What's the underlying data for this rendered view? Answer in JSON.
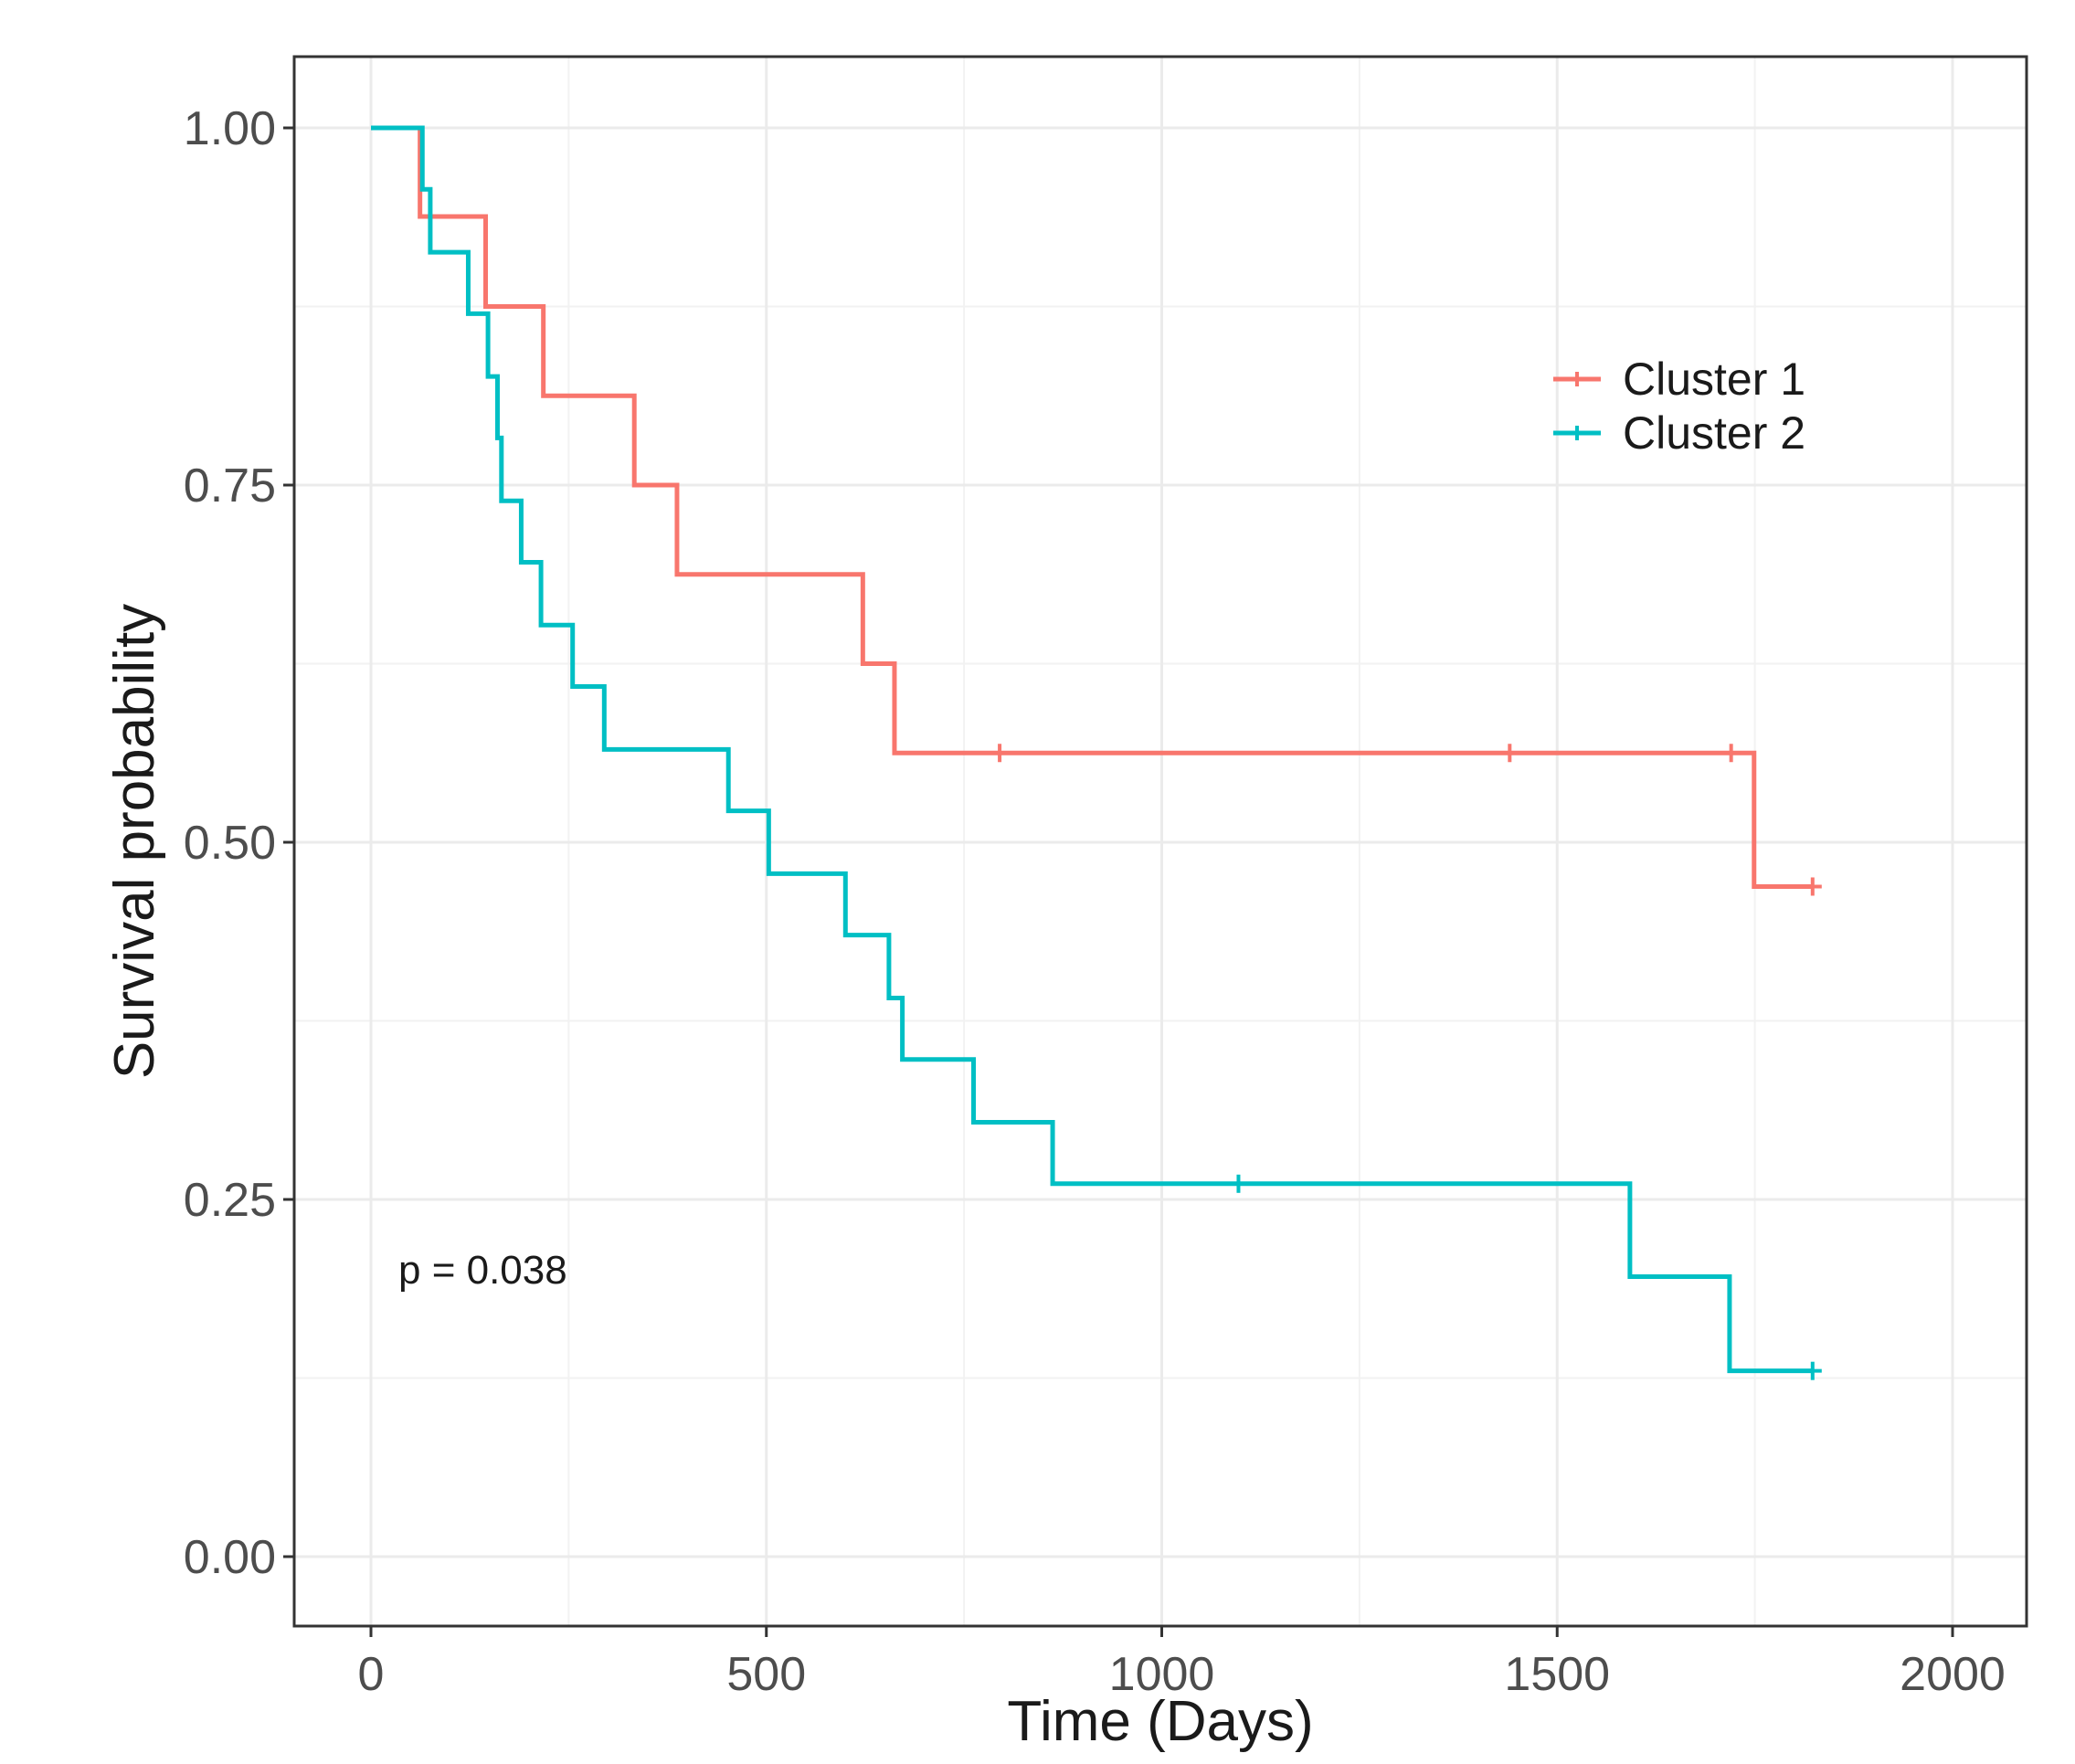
{
  "chart_data": {
    "type": "line",
    "subtype": "kaplan-meier-step",
    "title": "",
    "xlabel": "Time (Days)",
    "ylabel": "Survival probability",
    "xlim": [
      -100,
      2100
    ],
    "ylim": [
      -0.05,
      1.05
    ],
    "x_ticks": [
      0,
      500,
      1000,
      1500,
      2000
    ],
    "x_tick_labels": [
      "0",
      "500",
      "1000",
      "1500",
      "2000"
    ],
    "y_ticks": [
      0,
      0.25,
      0.5,
      0.75,
      1.0
    ],
    "y_tick_labels": [
      "0.00",
      "0.25",
      "0.50",
      "0.75",
      "1.00"
    ],
    "grid": true,
    "legend_position": "top-right",
    "annotation": "p = 0.038",
    "series": [
      {
        "name": "Cluster 1",
        "color": "#F8766D",
        "steps": [
          {
            "t": 0,
            "s": 1.0
          },
          {
            "t": 62,
            "s": 0.938
          },
          {
            "t": 145,
            "s": 0.875
          },
          {
            "t": 218,
            "s": 0.8125
          },
          {
            "t": 333,
            "s": 0.75
          },
          {
            "t": 387,
            "s": 0.6875
          },
          {
            "t": 622,
            "s": 0.625
          },
          {
            "t": 662,
            "s": 0.5625
          },
          {
            "t": 1749,
            "s": 0.469
          },
          {
            "t": 1823,
            "s": 0.469
          }
        ],
        "censored": [
          {
            "t": 795,
            "s": 0.5625
          },
          {
            "t": 1440,
            "s": 0.5625
          },
          {
            "t": 1720,
            "s": 0.5625
          },
          {
            "t": 1823,
            "s": 0.469
          }
        ]
      },
      {
        "name": "Cluster 2",
        "color": "#00BFC4",
        "steps": [
          {
            "t": 0,
            "s": 1.0
          },
          {
            "t": 65,
            "s": 0.957
          },
          {
            "t": 75,
            "s": 0.913
          },
          {
            "t": 123,
            "s": 0.87
          },
          {
            "t": 148,
            "s": 0.826
          },
          {
            "t": 160,
            "s": 0.783
          },
          {
            "t": 165,
            "s": 0.739
          },
          {
            "t": 190,
            "s": 0.696
          },
          {
            "t": 215,
            "s": 0.652
          },
          {
            "t": 255,
            "s": 0.609
          },
          {
            "t": 295,
            "s": 0.565
          },
          {
            "t": 452,
            "s": 0.522
          },
          {
            "t": 503,
            "s": 0.478
          },
          {
            "t": 600,
            "s": 0.435
          },
          {
            "t": 655,
            "s": 0.391
          },
          {
            "t": 672,
            "s": 0.348
          },
          {
            "t": 762,
            "s": 0.304
          },
          {
            "t": 862,
            "s": 0.261
          },
          {
            "t": 1592,
            "s": 0.196
          },
          {
            "t": 1718,
            "s": 0.13
          },
          {
            "t": 1823,
            "s": 0.13
          }
        ],
        "censored": [
          {
            "t": 1097,
            "s": 0.261
          },
          {
            "t": 1823,
            "s": 0.13
          }
        ]
      }
    ]
  }
}
